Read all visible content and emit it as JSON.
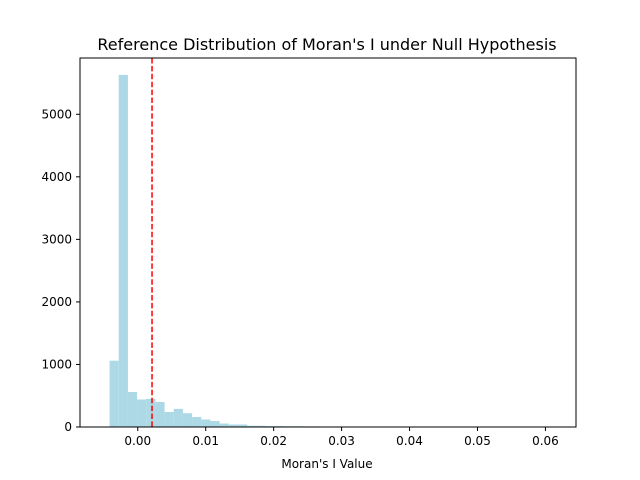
{
  "chart_data": {
    "type": "bar",
    "title": "Reference Distribution of Moran's I under Null Hypothesis",
    "xlabel": "Moran's I Value",
    "ylabel": "",
    "xlim": [
      -0.0085,
      0.0645
    ],
    "ylim": [
      0,
      5900
    ],
    "grid": false,
    "legend": "none",
    "x_ticks": [
      0.0,
      0.01,
      0.02,
      0.03,
      0.04,
      0.05,
      0.06
    ],
    "x_tick_labels": [
      "0.00",
      "0.01",
      "0.02",
      "0.03",
      "0.04",
      "0.05",
      "0.06"
    ],
    "y_ticks": [
      0,
      1000,
      2000,
      3000,
      4000,
      5000
    ],
    "y_tick_labels": [
      "0",
      "1000",
      "2000",
      "3000",
      "4000",
      "5000"
    ],
    "bin_start": -0.0055,
    "bin_width": 0.00135,
    "counts": [
      8,
      1060,
      5630,
      560,
      440,
      450,
      400,
      240,
      290,
      220,
      160,
      120,
      95,
      55,
      40,
      40,
      20,
      20,
      15,
      15,
      12,
      12,
      10,
      10,
      8,
      8,
      6,
      6,
      4,
      4,
      3,
      3,
      2,
      2,
      2,
      2,
      1,
      1,
      1,
      1,
      1,
      1,
      1,
      1,
      1,
      1,
      1,
      1,
      1,
      1
    ],
    "bar_color": "#add8e6",
    "observed_line": {
      "x": 0.0021,
      "color": "#ff0000",
      "style": "dashed"
    }
  }
}
